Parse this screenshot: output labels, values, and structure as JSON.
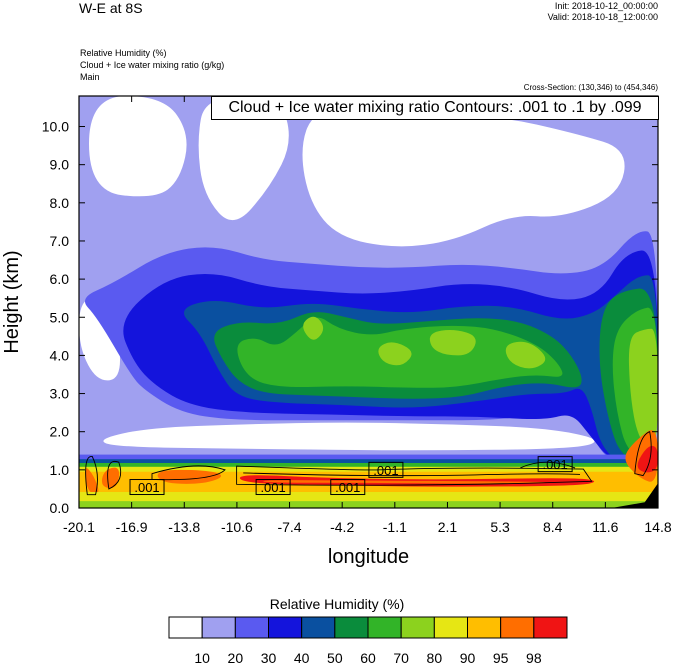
{
  "header": {
    "title": "W-E at 8S",
    "init": "Init: 2018-10-12_00:00:00",
    "valid": "Valid: 2018-10-18_12:00:00",
    "fields": [
      "Relative Humidity   (%)",
      "Cloud + Ice water mixing ratio   (g/kg)",
      "Main"
    ],
    "cross_section": "Cross-Section: (130,346) to (454,346)",
    "contour_label": "Cloud + Ice water mixing ratio Contours: .001 to .1 by .099"
  },
  "colorbar": {
    "title": "Relative Humidity  (%)",
    "colors": [
      "#ffffff",
      "#a0a0f0",
      "#5a5af0",
      "#1414dc",
      "#0a50a0",
      "#0a8c3c",
      "#32b428",
      "#8cd21e",
      "#e6e614",
      "#ffbe00",
      "#ff6e00",
      "#f01414"
    ],
    "labels": [
      "10",
      "20",
      "30",
      "40",
      "50",
      "60",
      "70",
      "80",
      "90",
      "95",
      "98"
    ]
  },
  "chart_data": {
    "type": "heatmap",
    "title": "W-E at 8S",
    "xlabel": "longitude",
    "ylabel": "Height (km)",
    "xticks": [
      "-20.1",
      "-16.9",
      "-13.8",
      "-10.6",
      "-7.4",
      "-4.2",
      "-1.1",
      "2.1",
      "5.3",
      "8.4",
      "11.6",
      "14.8"
    ],
    "yticks": [
      "0.0",
      "1.0",
      "2.0",
      "3.0",
      "4.0",
      "5.0",
      "6.0",
      "7.0",
      "8.0",
      "9.0",
      "10.0"
    ],
    "xlim": [
      -20.1,
      14.8
    ],
    "ylim": [
      0.0,
      10.8
    ],
    "contour_labels": [
      {
        "text": ".001",
        "x": -16.0,
        "y": 0.55
      },
      {
        "text": ".001",
        "x": -8.4,
        "y": 0.55
      },
      {
        "text": ".001",
        "x": -3.9,
        "y": 0.55
      },
      {
        "text": ".001",
        "x": -1.6,
        "y": 1.0
      },
      {
        "text": ".001",
        "x": 8.6,
        "y": 1.15
      }
    ]
  }
}
